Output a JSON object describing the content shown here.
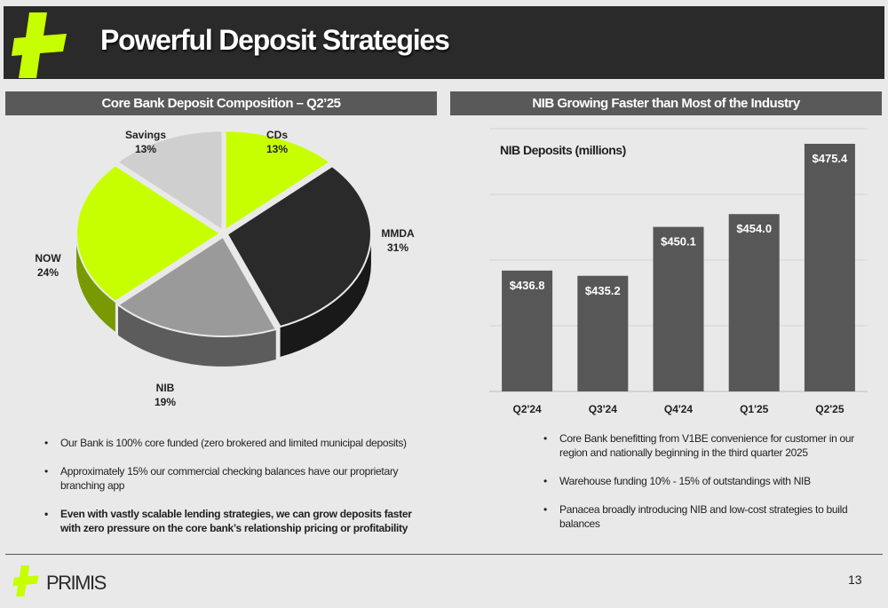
{
  "header": {
    "title": "Powerful Deposit Strategies"
  },
  "colors": {
    "accent": "#c8ff00",
    "dark": "#2a2a2a",
    "bar": "#575757",
    "mid_gray": "#9a9a9a",
    "light_gray": "#cfcfcf"
  },
  "left_section": {
    "title": "Core Bank Deposit Composition – Q2’25"
  },
  "right_section": {
    "title": "NIB Growing Faster than Most of the Industry"
  },
  "chart_data": [
    {
      "type": "pie",
      "title": "",
      "slices": [
        {
          "label": "CDs",
          "percent_label": "13%",
          "value": 13,
          "color": "#c8ff00"
        },
        {
          "label": "MMDA",
          "percent_label": "31%",
          "value": 31,
          "color": "#2a2a2a"
        },
        {
          "label": "NIB",
          "percent_label": "19%",
          "value": 19,
          "color": "#9a9a9a"
        },
        {
          "label": "NOW",
          "percent_label": "24%",
          "value": 24,
          "color": "#c8ff00"
        },
        {
          "label": "Savings",
          "percent_label": "13%",
          "value": 13,
          "color": "#cfcfcf"
        }
      ]
    },
    {
      "type": "bar",
      "title": "NIB Deposits (millions)",
      "categories": [
        "Q2'24",
        "Q3'24",
        "Q4'24",
        "Q1'25",
        "Q2'25"
      ],
      "values": [
        436.8,
        435.2,
        450.1,
        454.0,
        475.4
      ],
      "value_labels": [
        "$436.8",
        "$435.2",
        "$450.1",
        "$454.0",
        "$475.4"
      ],
      "ylim": [
        400,
        480
      ],
      "grid": true,
      "color": "#575757"
    }
  ],
  "bullets_left": [
    {
      "text": "Our Bank is 100% core funded (zero brokered and limited municipal deposits)"
    },
    {
      "text": "Approximately 15% our commercial checking balances have our proprietary branching app"
    },
    {
      "text": "Even with vastly scalable lending strategies, we can grow deposits faster with zero pressure on the core bank’s relationship pricing or profitability"
    }
  ],
  "bullets_right": [
    {
      "text": "Core Bank benefitting from V1BE convenience for customer in our region and nationally beginning in the third quarter 2025"
    },
    {
      "text": "Warehouse funding 10% - 15% of outstandings with NIB"
    },
    {
      "text": "Panacea broadly introducing NIB and low-cost strategies to build balances"
    }
  ],
  "footer": {
    "brand": "PRIMIS",
    "page_number": "13"
  }
}
